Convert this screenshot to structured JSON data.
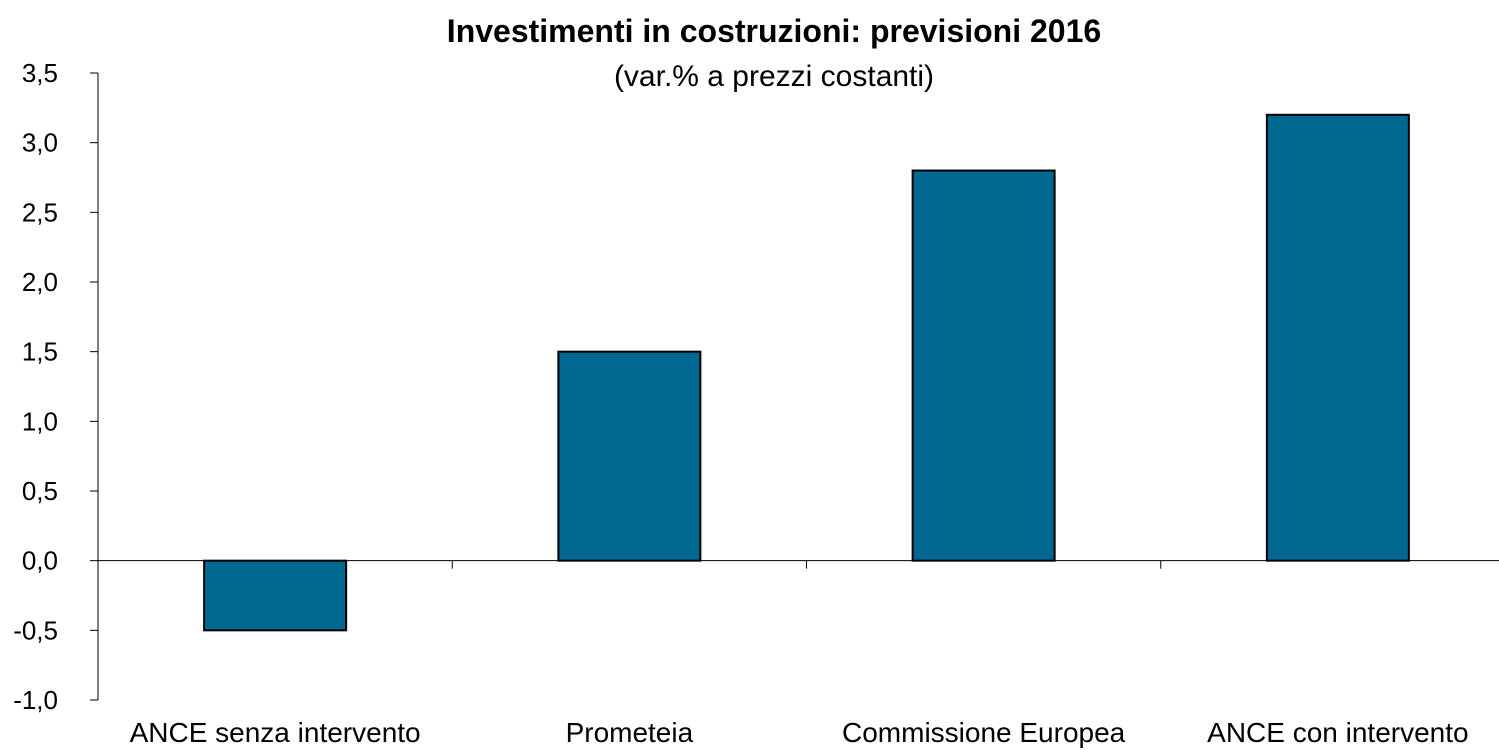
{
  "chart_data": {
    "type": "bar",
    "title": "Investimenti in costruzioni: previsioni 2016",
    "subtitle": "(var.% a prezzi costanti)",
    "xlabel": "",
    "ylabel": "",
    "categories": [
      "ANCE senza intervento",
      "Prometeia",
      "Commissione Europea",
      "ANCE con intervento"
    ],
    "values": [
      -0.5,
      1.5,
      2.8,
      3.2
    ],
    "ylim": [
      -1.0,
      3.5
    ],
    "yticks": [
      3.5,
      3.0,
      2.5,
      2.0,
      1.5,
      1.0,
      0.5,
      0.0,
      -0.5,
      -1.0
    ],
    "ytick_labels": [
      "3,5",
      "3,0",
      "2,5",
      "2,0",
      "1,5",
      "1,0",
      "0,5",
      "0,0",
      "-0,5",
      "-1,0"
    ],
    "grid": false,
    "legend": "none",
    "bar_color": "#006891",
    "bar_edge_color": "#000000"
  }
}
